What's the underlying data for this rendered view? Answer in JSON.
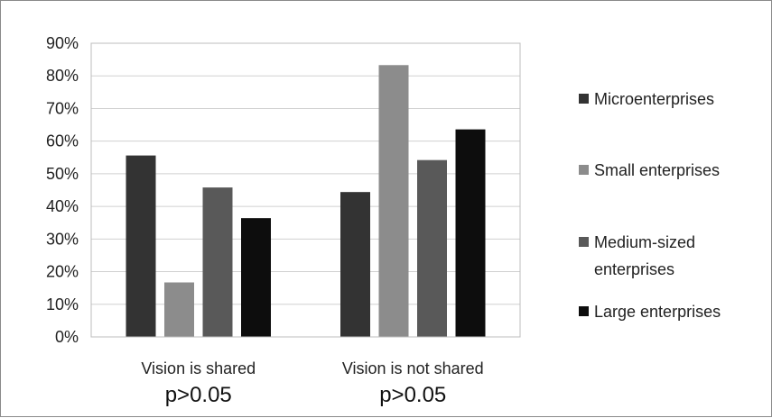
{
  "chart_data": {
    "type": "bar",
    "categories": [
      "Vision is shared",
      "Vision is not shared"
    ],
    "category_notes": [
      "p>0.05",
      "p>0.05"
    ],
    "series": [
      {
        "name": "Microenterprises",
        "values": [
          55.6,
          44.4
        ],
        "color": "#333333"
      },
      {
        "name": "Small enterprises",
        "values": [
          16.7,
          83.3
        ],
        "color": "#8c8c8c"
      },
      {
        "name": "Medium-sized enterprises",
        "values": [
          45.8,
          54.2
        ],
        "color": "#595959"
      },
      {
        "name": "Large enterprises",
        "values": [
          36.4,
          63.6
        ],
        "color": "#0d0d0d"
      }
    ],
    "ylim": [
      0,
      90
    ],
    "ytick_labels": [
      "0%",
      "10%",
      "20%",
      "30%",
      "40%",
      "50%",
      "60%",
      "70%",
      "80%",
      "90%"
    ],
    "grid": true,
    "legend_position": "right"
  }
}
